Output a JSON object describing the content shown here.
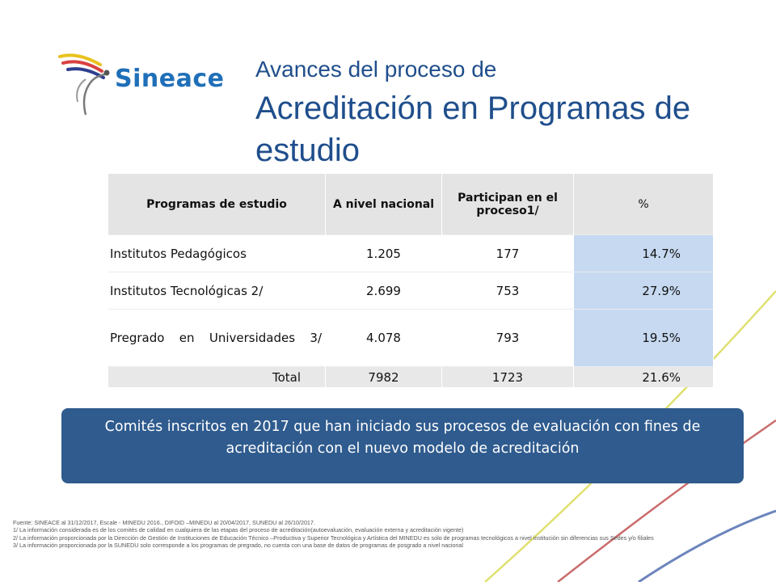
{
  "logo": {
    "text": "Sineace"
  },
  "title": {
    "line1": "Avances del proceso de",
    "line2": "Acreditación en Programas de estudio"
  },
  "table": {
    "headers": [
      "Programas de estudio",
      "A nivel nacional",
      "Participan en el proceso1/",
      "%"
    ],
    "rows": [
      {
        "programa": "Institutos Pedagógicos",
        "nacional": "1.205",
        "participan": "177",
        "pct": "14.7%"
      },
      {
        "programa": "Institutos Tecnológicas 2/",
        "nacional": "2.699",
        "participan": "753",
        "pct": "27.9%"
      },
      {
        "programa": "Pregrado en Universidades 3/",
        "nacional": "4.078",
        "participan": "793",
        "pct": "19.5%"
      }
    ],
    "total": {
      "label": "Total",
      "nacional": "7982",
      "participan": "1723",
      "pct": "21.6%"
    }
  },
  "banner": {
    "text": "Comités inscritos en 2017 que han iniciado sus procesos de evaluación con fines de acreditación con el nuevo modelo de acreditación"
  },
  "footnotes": [
    "Fuente: SINEACE al 31/12/2017, Escale - MINEDU 2016., DIFOID –MINEDU al 20/04/2017, SUNEDU al 26/10/2017.",
    "1/ La información considerada es de los comités de calidad en cualquiera de las etapas del proceso de acreditación(autoevaluación, evaluación externa y acreditación vigente)",
    "2/ La información proporcionada por la Dirección de Gestión de Instituciones de Educación Técnico –Productiva y Superior Tecnológica y Artística del MINEDU es solo de programas tecnológicos a nivel institución sin diferencias sus Sedes y/o filiales",
    "3/ La información proporcionada por la SUNEDU solo corresponde a los programas de pregrado, no cuenta con una base de datos de programas de posgrado a nivel nacional"
  ],
  "colors": {
    "title": "#1f4e8c",
    "banner": "#2f5b8e",
    "pct_cell": "#c6d9f1",
    "deco_yellow": "#e0e070",
    "deco_red": "#c96b6b",
    "deco_blue": "#6d85bd"
  }
}
